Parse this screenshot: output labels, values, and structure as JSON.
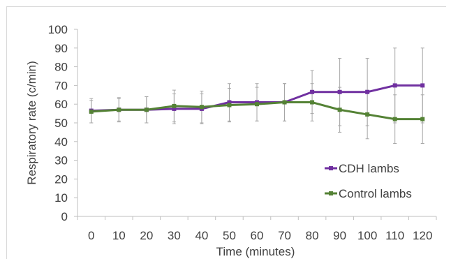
{
  "chart_data": {
    "type": "line",
    "title": "",
    "xlabel": "Time (minutes)",
    "ylabel": "Respiratory rate (c/min)",
    "x": [
      0,
      10,
      20,
      30,
      40,
      50,
      60,
      70,
      80,
      90,
      100,
      110,
      120
    ],
    "xlim": [
      0,
      120
    ],
    "ylim": [
      0,
      100
    ],
    "yticks": [
      0,
      10,
      20,
      30,
      40,
      50,
      60,
      70,
      80,
      90,
      100
    ],
    "grid": false,
    "legend_position": "right",
    "series": [
      {
        "name": "CDH lambs",
        "color": "#7030a0",
        "values": [
          56.5,
          57,
          57,
          57.5,
          57.5,
          61,
          61,
          61,
          66.5,
          66.5,
          66.5,
          70,
          70
        ],
        "error": [
          6.5,
          6.5,
          7,
          8,
          8,
          10,
          10,
          10,
          11.5,
          18,
          18,
          20,
          20
        ]
      },
      {
        "name": "Control lambs",
        "color": "#548235",
        "values": [
          56,
          57,
          57,
          59,
          58.5,
          59.5,
          60,
          61,
          61,
          57,
          54.5,
          52,
          52
        ],
        "error": [
          6,
          6,
          7,
          8.5,
          8.5,
          9,
          9,
          10,
          10,
          12,
          13,
          13,
          13
        ]
      }
    ]
  }
}
